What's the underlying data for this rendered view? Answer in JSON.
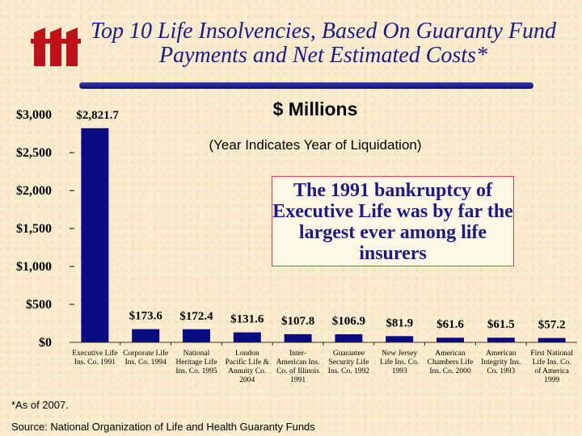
{
  "title": "Top 10 Life Insolvencies, Based On Guaranty Fund Payments and Net Estimated Costs*",
  "subtitle": "$ Millions",
  "note": "(Year Indicates Year of Liquidation)",
  "callout": "The 1991 bankruptcy of Executive Life was by far the largest ever among life insurers",
  "footnote": "*As of 2007.",
  "source": "Source: National Organization of Life and Health Guaranty Funds",
  "colors": {
    "bar": "#0c0c82",
    "title": "#1a1a8c",
    "background": "#fbeed0"
  },
  "chart_data": {
    "type": "bar",
    "title": "Top 10 Life Insolvencies, Based On Guaranty Fund Payments and Net Estimated Costs*",
    "ylabel": "$ Millions",
    "ylim": [
      0,
      3000
    ],
    "yticks": [
      "$0",
      "$500",
      "$1,000",
      "$1,500",
      "$2,000",
      "$2,500",
      "$3,000"
    ],
    "categories": [
      [
        "Executive Life",
        "Ins. Co. 1991"
      ],
      [
        "Corporate Life",
        "Ins. Co. 1994"
      ],
      [
        "National",
        "Heritage Life",
        "Ins. Co. 1995"
      ],
      [
        "London",
        "Pacific Life &",
        "Annuity Co.",
        "2004"
      ],
      [
        "Inter-",
        "American Ins.",
        "Co. of Illinois",
        "1991"
      ],
      [
        "Guarantee",
        "Security Life",
        "Ins. Co. 1992"
      ],
      [
        "New Jersey",
        "Life Ins. Co.",
        "1993"
      ],
      [
        "American",
        "Chambers Life",
        "Ins. Co. 2000"
      ],
      [
        "American",
        "Integrity Ins.",
        "Co. 1993"
      ],
      [
        "First National",
        "Life Ins. Co.",
        "of America",
        "1999"
      ]
    ],
    "values": [
      2821.7,
      173.6,
      172.4,
      131.6,
      107.8,
      106.9,
      81.9,
      61.6,
      61.5,
      57.2
    ],
    "value_labels": [
      "$2,821.7",
      "$173.6",
      "$172.4",
      "$131.6",
      "$107.8",
      "$106.9",
      "$81.9",
      "$61.6",
      "$61.5",
      "$57.2"
    ]
  }
}
